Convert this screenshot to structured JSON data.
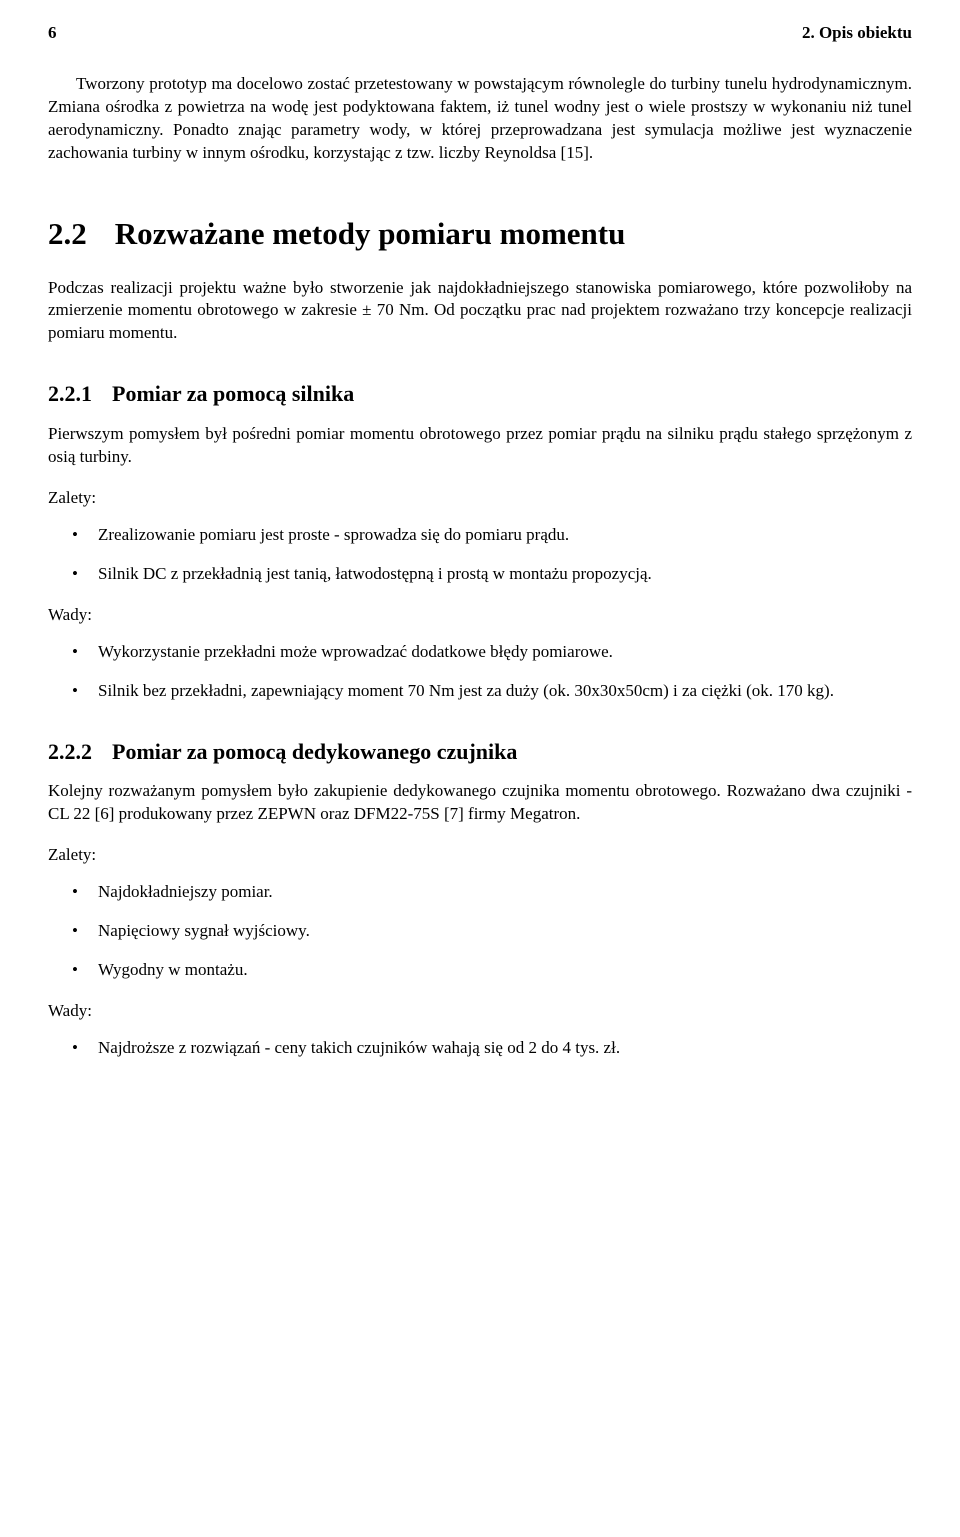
{
  "header": {
    "page_number": "6",
    "chapter": "2. Opis obiektu"
  },
  "intro": {
    "p1": "Tworzony prototyp ma docelowo zostać przetestowany w powstającym równolegle do turbiny tunelu hydrodynamicznym. Zmiana ośrodka z powietrza na wodę jest podyktowana faktem, iż tunel wodny jest o wiele prostszy w wykonaniu niż tunel aerodynamiczny. Ponadto znając parametry wody, w której przeprowadzana jest symulacja możliwe jest wyznaczenie zachowania turbiny w innym ośrodku, korzystając z tzw. liczby Reynoldsa [15]."
  },
  "s22": {
    "num": "2.2",
    "title": "Rozważane metody pomiaru momentu",
    "p1": "Podczas realizacji projektu ważne było stworzenie jak najdokładniejszego stanowiska pomiarowego, które pozwoliłoby na zmierzenie momentu obrotowego w zakresie ± 70 Nm. Od początku prac nad projektem rozważano trzy koncepcje realizacji pomiaru momentu."
  },
  "s221": {
    "num": "2.2.1",
    "title": "Pomiar za pomocą silnika",
    "p1": "Pierwszym pomysłem był pośredni pomiar momentu obrotowego przez pomiar prądu na silniku prądu stałego sprzężonym z osią turbiny.",
    "zalety_label": "Zalety:",
    "zalety": [
      "Zrealizowanie pomiaru jest proste - sprowadza się do pomiaru prądu.",
      "Silnik DC z przekładnią jest tanią, łatwodostępną i prostą w montażu propozycją."
    ],
    "wady_label": "Wady:",
    "wady": [
      "Wykorzystanie przekładni może wprowadzać dodatkowe błędy pomiarowe.",
      "Silnik bez przekładni, zapewniający moment 70 Nm jest za duży (ok. 30x30x50cm) i za ciężki (ok. 170 kg)."
    ]
  },
  "s222": {
    "num": "2.2.2",
    "title": "Pomiar za pomocą dedykowanego czujnika",
    "p1": "Kolejny rozważanym pomysłem było zakupienie dedykowanego czujnika momentu obrotowego. Rozważano dwa czujniki - CL 22 [6] produkowany przez ZEPWN oraz DFM22-75S [7] firmy Megatron.",
    "zalety_label": "Zalety:",
    "zalety": [
      "Najdokładniejszy pomiar.",
      "Napięciowy sygnał wyjściowy.",
      "Wygodny w montażu."
    ],
    "wady_label": "Wady:",
    "wady": [
      "Najdroższe z rozwiązań - ceny takich czujników wahają się od 2 do 4 tys. zł."
    ]
  }
}
